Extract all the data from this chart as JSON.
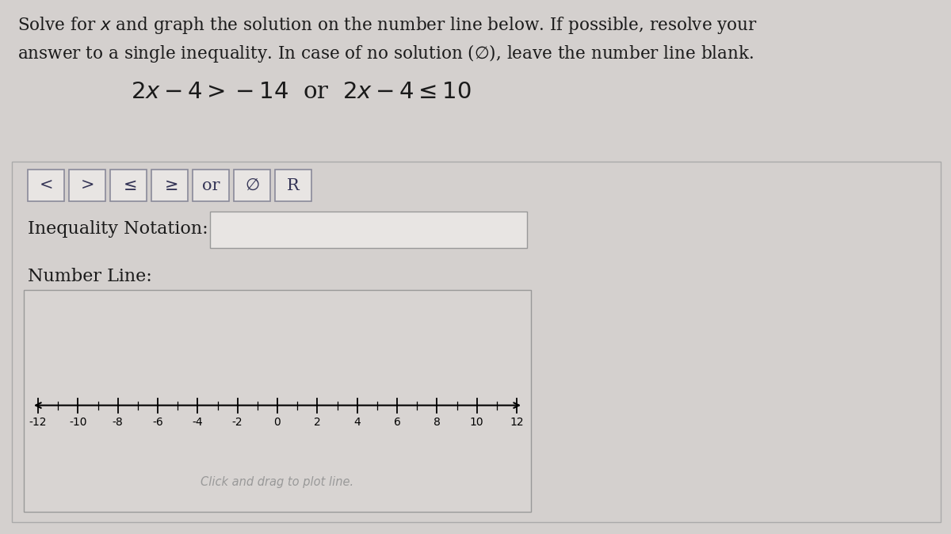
{
  "bg_color": "#d4d0ce",
  "panel_bg": "#d4d0ce",
  "panel_inner_bg": "#d4d0ce",
  "nlbox_bg": "#d8d4d2",
  "btn_bg": "#e8e5e3",
  "ibox_bg": "#e8e5e3",
  "line1": "Solve for $x$ and graph the solution on the number line below. If possible, resolve your",
  "line2": "answer to a single inequality. In case of no solution ($\\emptyset$), leave the number line blank.",
  "equation": "$2x - 4 > -14$  or  $2x - 4 \\leq 10$",
  "buttons": [
    "<",
    ">",
    "≤",
    "≥",
    "or",
    "Ø",
    "R"
  ],
  "inequality_label": "Inequality Notation:",
  "number_line_label": "Number Line:",
  "number_line_ticks": [
    -12,
    -10,
    -8,
    -6,
    -4,
    -2,
    0,
    2,
    4,
    6,
    8,
    10,
    12
  ],
  "number_line_hint": "Click and drag to plot line.",
  "text_color": "#1a1a1a",
  "border_color": "#aaaaaa",
  "btn_border_color": "#999999"
}
